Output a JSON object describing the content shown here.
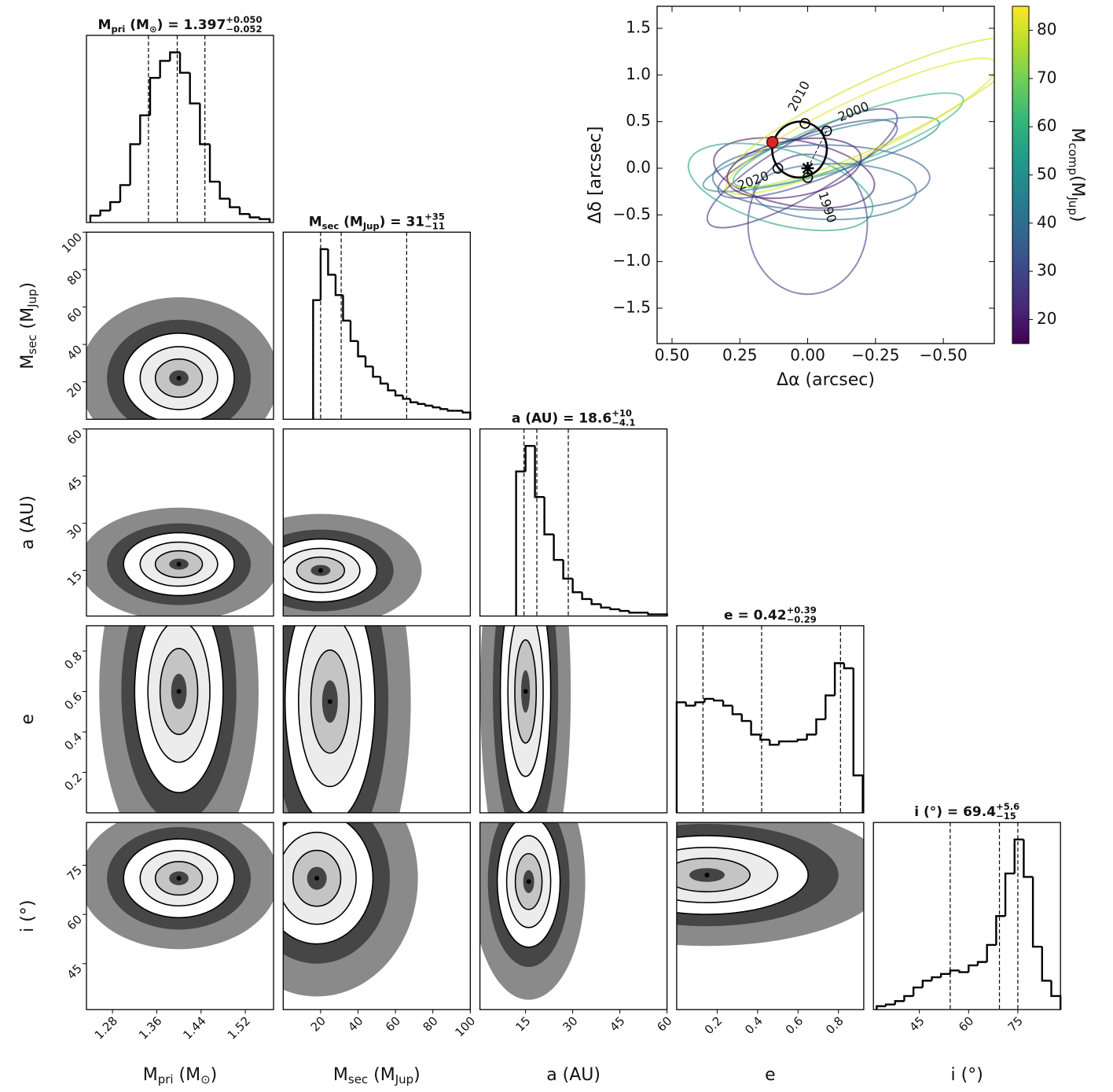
{
  "chart_data": [
    {
      "type": "corner",
      "hist_ylim": [
        0,
        110
      ],
      "params": [
        {
          "label": [
            {
              "text": "M"
            },
            {
              "sub": "pri"
            },
            {
              "text": " (M"
            },
            {
              "sub": "⊙"
            },
            {
              "text": ")"
            }
          ],
          "title": [
            {
              "text": "M"
            },
            {
              "sub": "pri"
            },
            {
              "text": " (M"
            },
            {
              "sub": "⊙"
            },
            {
              "text": ") = 1.397"
            },
            {
              "sup": "+0.050"
            },
            {
              "sub": "−0.052"
            }
          ],
          "lim": [
            1.233,
            1.571
          ],
          "ticks": [
            1.28,
            1.36,
            1.44,
            1.52
          ],
          "bins": [
            1.24,
            1.258,
            1.276,
            1.294,
            1.312,
            1.33,
            1.348,
            1.366,
            1.384,
            1.402,
            1.42,
            1.438,
            1.456,
            1.474,
            1.492,
            1.51,
            1.528,
            1.546,
            1.564
          ],
          "counts": [
            4,
            7,
            12,
            22,
            46,
            63,
            85,
            95,
            100,
            88,
            70,
            46,
            24,
            14,
            9,
            5,
            3,
            2
          ],
          "quantiles": [
            1.345,
            1.397,
            1.447
          ],
          "joint": []
        },
        {
          "label": [
            {
              "text": "M"
            },
            {
              "sub": "sec"
            },
            {
              "text": " (M"
            },
            {
              "sub": "Jup"
            },
            {
              "text": ")"
            }
          ],
          "title": [
            {
              "text": "M"
            },
            {
              "sub": "sec"
            },
            {
              "text": " (M"
            },
            {
              "sub": "Jup"
            },
            {
              "text": ") = 31"
            },
            {
              "sup": "+35"
            },
            {
              "sub": "−11"
            }
          ],
          "lim": [
            0,
            100
          ],
          "ticks": [
            20,
            40,
            60,
            80,
            100
          ],
          "bins": [
            16,
            20,
            24,
            28,
            32,
            36,
            40,
            44,
            48,
            52,
            56,
            60,
            64,
            68,
            72,
            76,
            80,
            84,
            88,
            92,
            96,
            100
          ],
          "counts": [
            70,
            100,
            85,
            73,
            58,
            46,
            37,
            31,
            25,
            21,
            17,
            14,
            12,
            10,
            9,
            8,
            7,
            6,
            5,
            5,
            4
          ],
          "quantiles": [
            20,
            31,
            66
          ],
          "joint": [
            {
              "peak": [
                1.4,
                22
              ],
              "spread": [
                0.05,
                12
              ]
            }
          ]
        },
        {
          "label": [
            {
              "text": "a (AU)"
            }
          ],
          "title": [
            {
              "text": "a (AU) = 18.6"
            },
            {
              "sup": "+10"
            },
            {
              "sub": "−4.1"
            }
          ],
          "lim": [
            0.5,
            60
          ],
          "ticks": [
            15,
            30,
            45,
            60
          ],
          "bins": [
            12,
            15,
            18,
            21,
            24,
            27,
            30,
            33,
            36,
            39,
            42,
            45,
            48,
            51,
            54,
            57,
            60
          ],
          "counts": [
            85,
            100,
            70,
            48,
            33,
            22,
            14,
            10,
            7,
            5,
            4,
            3,
            2,
            2,
            1,
            1
          ],
          "quantiles": [
            14.5,
            18.6,
            28.6
          ],
          "joint": [
            {
              "peak": [
                1.4,
                17
              ],
              "spread": [
                0.05,
                5
              ]
            },
            {
              "peak": [
                20,
                15
              ],
              "spread": [
                15,
                5
              ]
            }
          ]
        },
        {
          "label": [
            {
              "text": "e"
            }
          ],
          "title": [
            {
              "text": "e = 0.42"
            },
            {
              "sup": "+0.39"
            },
            {
              "sub": "−0.29"
            }
          ],
          "lim": [
            0,
            0.925
          ],
          "ticks": [
            0.2,
            0.4,
            0.6,
            0.8
          ],
          "bins": [
            0,
            0.046,
            0.092,
            0.138,
            0.184,
            0.23,
            0.276,
            0.322,
            0.368,
            0.414,
            0.46,
            0.506,
            0.552,
            0.598,
            0.644,
            0.69,
            0.736,
            0.782,
            0.828,
            0.874,
            0.92
          ],
          "counts": [
            65,
            63,
            65,
            67,
            66,
            63,
            58,
            54,
            46,
            43,
            40,
            42,
            42,
            43,
            46,
            55,
            69,
            88,
            85,
            22
          ],
          "quantiles": [
            0.13,
            0.42,
            0.81
          ],
          "joint": [
            {
              "peak": [
                1.4,
                0.6
              ],
              "spread": [
                0.04,
                0.25
              ]
            },
            {
              "peak": [
                25,
                0.55
              ],
              "spread": [
                12,
                0.3
              ]
            },
            {
              "peak": [
                15,
                0.6
              ],
              "spread": [
                4,
                0.3
              ]
            }
          ]
        },
        {
          "label": [
            {
              "text": "i (°)"
            }
          ],
          "title": [
            {
              "text": "i (°) = 69.4"
            },
            {
              "sup": "+5.6"
            },
            {
              "sub": "−15"
            }
          ],
          "lim": [
            31,
            88
          ],
          "ticks": [
            45,
            60,
            75
          ],
          "bins": [
            32,
            34.8,
            37.6,
            40.4,
            43.2,
            46,
            48.8,
            51.6,
            54.4,
            57.2,
            60,
            62.8,
            65.6,
            68.4,
            71.2,
            74,
            76.8,
            79.6,
            82.4,
            85.2,
            88
          ],
          "counts": [
            2,
            3,
            5,
            8,
            13,
            17,
            19,
            21,
            23,
            22,
            26,
            28,
            38,
            55,
            80,
            100,
            78,
            37,
            17,
            8
          ],
          "quantiles": [
            54.4,
            69.4,
            75.0
          ],
          "joint": [
            {
              "peak": [
                1.4,
                71
              ],
              "spread": [
                0.05,
                6
              ]
            },
            {
              "peak": [
                18,
                71
              ],
              "spread": [
                15,
                10
              ]
            },
            {
              "peak": [
                16,
                70
              ],
              "spread": [
                5,
                10
              ]
            },
            {
              "peak": [
                0.15,
                72
              ],
              "spread": [
                0.25,
                6
              ]
            }
          ]
        }
      ]
    },
    {
      "type": "orbits",
      "x_label": "Δα (arcsec)",
      "y_label": "Δδ [arcsec]",
      "xlim": [
        0.555,
        -0.688
      ],
      "xticks": [
        {
          "value": 0.5,
          "label": "0.50"
        },
        {
          "value": 0.25,
          "label": "0.25"
        },
        {
          "value": 0,
          "label": "0.00"
        },
        {
          "value": -0.25,
          "label": "−0.25"
        },
        {
          "value": -0.5,
          "label": "−0.50"
        }
      ],
      "ylim": [
        -1.879,
        1.736
      ],
      "yticks": [
        1.5,
        {
          "value": 1,
          "label": "1.0"
        },
        0.5,
        {
          "value": 0,
          "label": "0.0"
        },
        {
          "value": -0.5,
          "label": "−0.5"
        },
        {
          "value": -1,
          "label": "−1.0"
        },
        {
          "value": -1.5,
          "label": "−1.5"
        }
      ],
      "colormap": "viridis",
      "clim": [
        15,
        85
      ],
      "cticks": [
        20,
        30,
        40,
        50,
        60,
        70,
        80
      ],
      "color_label": [
        {
          "text": "M"
        },
        {
          "sub": "comp"
        },
        {
          "text": "(M"
        },
        {
          "sub": "Jup"
        },
        {
          "text": ")"
        }
      ],
      "orbits": [
        {
          "x": 0.0,
          "y": 0.1,
          "rx": 0.35,
          "ry": 0.25,
          "angle": -20,
          "mass": 30
        },
        {
          "x": 0.02,
          "y": 0.0,
          "rx": 0.4,
          "ry": 0.3,
          "angle": -30,
          "mass": 25
        },
        {
          "x": -0.05,
          "y": 0.15,
          "rx": 0.45,
          "ry": 0.22,
          "angle": -15,
          "mass": 45
        },
        {
          "x": 0.05,
          "y": -0.05,
          "rx": 0.3,
          "ry": 0.35,
          "angle": 10,
          "mass": 20
        },
        {
          "x": 0.0,
          "y": -0.6,
          "rx": 0.22,
          "ry": 0.75,
          "angle": 0,
          "mass": 28
        },
        {
          "x": -0.05,
          "y": -0.1,
          "rx": 0.4,
          "ry": 0.35,
          "angle": 0,
          "mass": 35
        },
        {
          "x": -0.2,
          "y": 0.45,
          "rx": 0.55,
          "ry": 0.3,
          "angle": -25,
          "mass": 82
        },
        {
          "x": -0.15,
          "y": 0.3,
          "rx": 0.45,
          "ry": 0.25,
          "angle": -20,
          "mass": 60
        },
        {
          "x": 0.1,
          "y": -0.2,
          "rx": 0.35,
          "ry": 0.4,
          "angle": 15,
          "mass": 55
        },
        {
          "x": -0.25,
          "y": 0.6,
          "rx": 0.6,
          "ry": 0.35,
          "angle": -25,
          "mass": 80
        },
        {
          "x": 0.05,
          "y": 0.0,
          "rx": 0.25,
          "ry": 0.3,
          "angle": -10,
          "mass": 18
        },
        {
          "x": -0.1,
          "y": -0.25,
          "rx": 0.3,
          "ry": 0.3,
          "angle": 0,
          "mass": 40
        }
      ],
      "best_orbit": {
        "x": 0.03,
        "y": 0.2,
        "rx": 0.1,
        "ry": 0.3,
        "angle": 20
      },
      "epochs": [
        {
          "label": "2010",
          "x": 0.01,
          "y": 0.48,
          "label_x": 0.03,
          "label_y": 0.77
        },
        {
          "label": "2000",
          "x": -0.07,
          "y": 0.4,
          "label_x": -0.17,
          "label_y": 0.6
        },
        {
          "label": "2020",
          "x": 0.11,
          "y": 0.0,
          "label_x": 0.2,
          "label_y": -0.14
        },
        {
          "label": "1990",
          "x": 0.0,
          "y": -0.1,
          "label_x": -0.07,
          "label_y": -0.42
        }
      ],
      "companion": {
        "x": 0.13,
        "y": 0.28
      },
      "star": {
        "x": 0.0,
        "y": 0.0
      }
    }
  ]
}
